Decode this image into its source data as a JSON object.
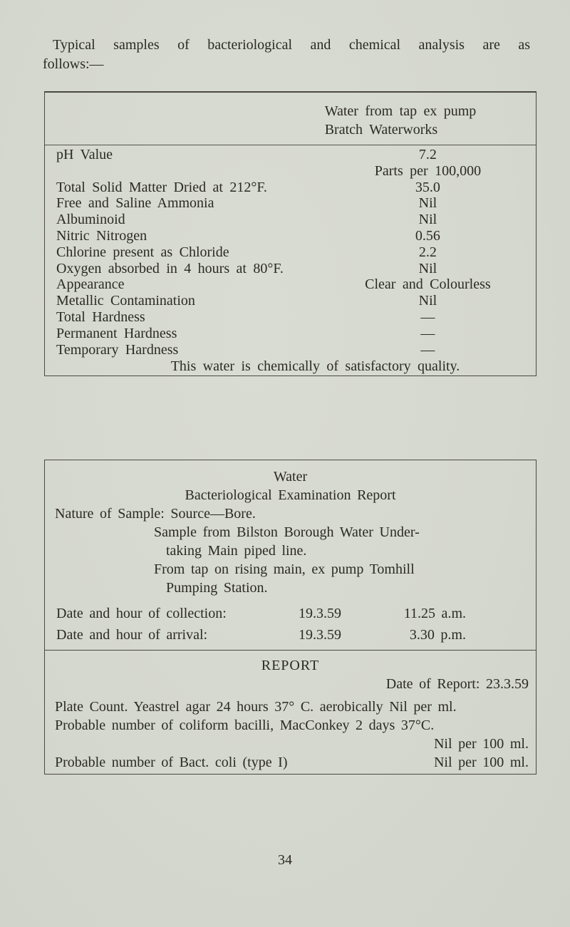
{
  "colors": {
    "paper": "#d6d9d0",
    "ink": "#2b2a23",
    "border": "#4a4940"
  },
  "page": {
    "intro_line1": "Typical samples of bacteriological and chemical analysis are as",
    "intro_line2": "follows:—",
    "page_number": "34"
  },
  "chem_table": {
    "header_line1": "Water from tap ex pump",
    "header_line2": "Bratch Waterworks",
    "rows": [
      {
        "label": "pH Value",
        "value": "7.2"
      },
      {
        "label": "",
        "value": "Parts per 100,000"
      },
      {
        "label": "Total Solid Matter Dried at 212°F.",
        "value": "35.0"
      },
      {
        "label": "Free and Saline Ammonia",
        "value": "Nil"
      },
      {
        "label": "Albuminoid",
        "value": "Nil"
      },
      {
        "label": "Nitric Nitrogen",
        "value": "0.56"
      },
      {
        "label": "Chlorine present as Chloride",
        "value": "2.2"
      },
      {
        "label": "Oxygen absorbed in 4 hours at 80°F.",
        "value": "Nil"
      },
      {
        "label": "Appearance",
        "value": "Clear and Colourless"
      },
      {
        "label": "Metallic Contamination",
        "value": "Nil"
      },
      {
        "label": "Total Hardness",
        "value": "—"
      },
      {
        "label": "Permanent Hardness",
        "value": "—"
      },
      {
        "label": "Temporary Hardness",
        "value": "—"
      }
    ],
    "footer_note": "This water is chemically of satisfactory quality."
  },
  "bact_report": {
    "title": "Water",
    "subtitle": "Bacteriological Examination Report",
    "nature_line": "Nature of Sample: Source—Bore.",
    "sample_line1": "Sample from Bilston Borough Water Under-",
    "sample_line2": "taking Main piped line.",
    "sample_line3": "From tap on rising main, ex pump Tomhill",
    "sample_line4": "Pumping Station.",
    "collection": {
      "label": "Date and hour of collection:",
      "date": "19.3.59",
      "time": "11.25 a.m."
    },
    "arrival": {
      "label": "Date and hour of arrival:",
      "date": "19.3.59",
      "time": "3.30 p.m."
    },
    "report": {
      "title": "REPORT",
      "date_line": "Date of Report: 23.3.59",
      "plate_count_line": "Plate Count. Yeastrel agar 24 hours 37° C. aerobically Nil per ml.",
      "coliform_line": "Probable number of coliform bacilli, MacConkey 2 days 37°C.",
      "coliform_value": "Nil per 100 ml.",
      "bact_coli_label": "Probable number of Bact. coli (type I)",
      "bact_coli_value": "Nil per 100 ml."
    }
  }
}
